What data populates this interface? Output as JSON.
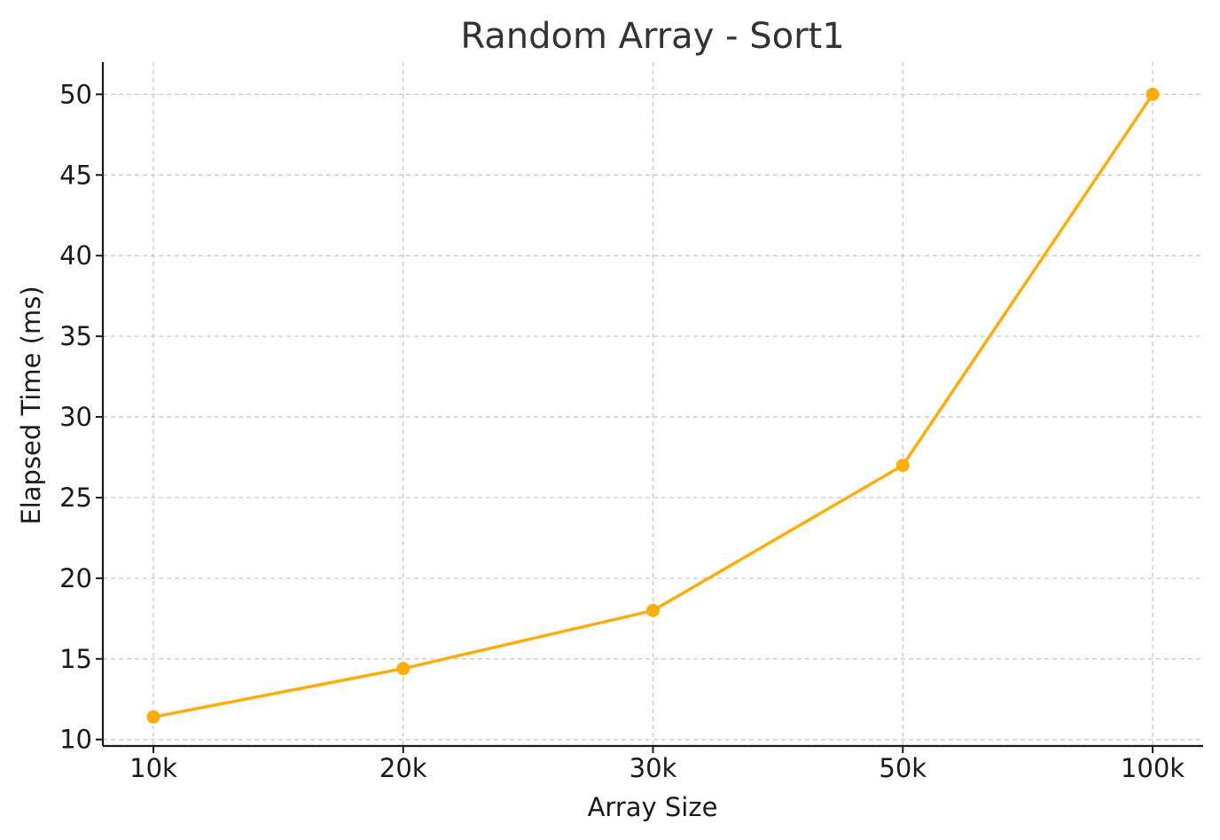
{
  "chart_data": {
    "type": "line",
    "title": "Random Array - Sort1",
    "xlabel": "Array Size",
    "ylabel": "Elapsed Time (ms)",
    "categories": [
      "10k",
      "20k",
      "30k",
      "50k",
      "100k"
    ],
    "series": [
      {
        "values": [
          11.4,
          14.4,
          18.0,
          27.0,
          50.0
        ]
      }
    ],
    "ylim": [
      9.6,
      52
    ],
    "yticks": [
      10,
      15,
      20,
      25,
      30,
      35,
      40,
      45,
      50
    ],
    "grid": true,
    "line_color": "#FBAE0B",
    "marker": "circle"
  }
}
